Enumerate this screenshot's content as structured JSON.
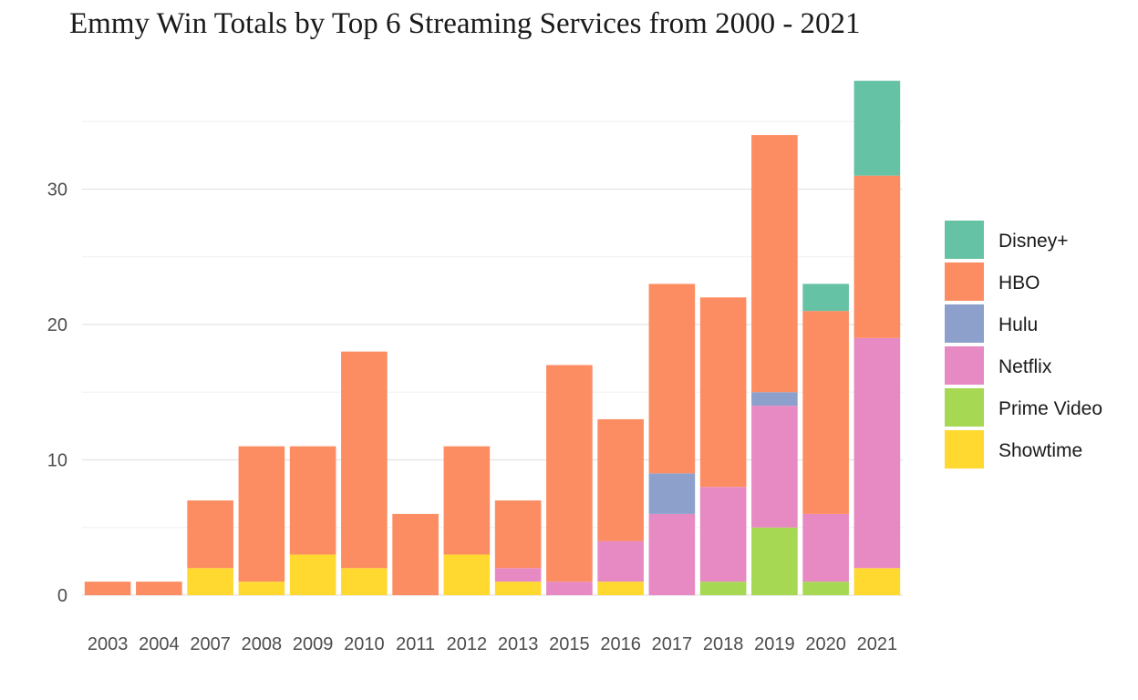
{
  "chart_data": {
    "type": "bar",
    "stacked": true,
    "title": "Emmy Win Totals by Top 6 Streaming Services from 2000 - 2021",
    "xlabel": "",
    "ylabel": "",
    "ylim": [
      0,
      38
    ],
    "yticks": [
      0,
      10,
      20,
      30
    ],
    "grid": true,
    "legend_position": "right",
    "categories": [
      "2003",
      "2004",
      "2007",
      "2008",
      "2009",
      "2010",
      "2011",
      "2012",
      "2013",
      "2015",
      "2016",
      "2017",
      "2018",
      "2019",
      "2020",
      "2021"
    ],
    "series": [
      {
        "name": "Showtime",
        "color": "#FFD92F",
        "values": [
          0,
          0,
          2,
          1,
          3,
          2,
          0,
          3,
          1,
          0,
          1,
          0,
          0,
          0,
          0,
          2
        ]
      },
      {
        "name": "Prime Video",
        "color": "#A6D854",
        "values": [
          0,
          0,
          0,
          0,
          0,
          0,
          0,
          0,
          0,
          0,
          0,
          0,
          1,
          5,
          1,
          0
        ]
      },
      {
        "name": "Netflix",
        "color": "#E78AC3",
        "values": [
          0,
          0,
          0,
          0,
          0,
          0,
          0,
          0,
          1,
          1,
          3,
          6,
          7,
          9,
          5,
          17
        ]
      },
      {
        "name": "Hulu",
        "color": "#8DA0CB",
        "values": [
          0,
          0,
          0,
          0,
          0,
          0,
          0,
          0,
          0,
          0,
          0,
          3,
          0,
          1,
          0,
          0
        ]
      },
      {
        "name": "HBO",
        "color": "#FC8D62",
        "values": [
          1,
          1,
          5,
          10,
          8,
          16,
          6,
          8,
          5,
          16,
          9,
          14,
          14,
          19,
          15,
          12
        ]
      },
      {
        "name": "Disney+",
        "color": "#66C2A5",
        "values": [
          0,
          0,
          0,
          0,
          0,
          0,
          0,
          0,
          0,
          0,
          0,
          0,
          0,
          0,
          2,
          7
        ]
      }
    ],
    "legend_order": [
      "Disney+",
      "HBO",
      "Hulu",
      "Netflix",
      "Prime Video",
      "Showtime"
    ]
  }
}
